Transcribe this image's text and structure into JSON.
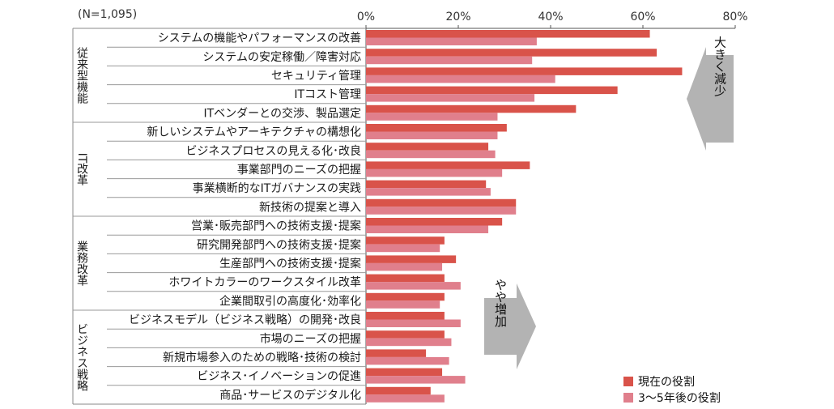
{
  "header": {
    "n_label": "(N=1,095)"
  },
  "chart_data": {
    "type": "bar",
    "orientation": "horizontal",
    "xlim": [
      0,
      80
    ],
    "x_ticks": [
      "0%",
      "20%",
      "40%",
      "60%",
      "80%"
    ],
    "grid": false,
    "legend_position": "bottom-right",
    "groups": [
      {
        "label": "従来型機能",
        "start": 0,
        "end": 4
      },
      {
        "label": "IT改革",
        "start": 5,
        "end": 9
      },
      {
        "label": "業務改革",
        "start": 10,
        "end": 14
      },
      {
        "label": "ビジネス戦略",
        "start": 15,
        "end": 19
      }
    ],
    "categories": [
      "システムの機能やパフォーマンスの改善",
      "システムの安定稼働／障害対応",
      "セキュリティ管理",
      "ITコスト管理",
      "ITベンダーとの交渉、製品選定",
      "新しいシステムやアーキテクチャの構想化",
      "ビジネスプロセスの見える化･改良",
      "事業部門のニーズの把握",
      "事業横断的なITガバナンスの実践",
      "新技術の提案と導入",
      "営業･販売部門への技術支援･提案",
      "研究開発部門への技術支援･提案",
      "生産部門への技術支援･提案",
      "ホワイトカラーのワークスタイル改革",
      "企業間取引の高度化･効率化",
      "ビジネスモデル（ビジネス戦略）の開発･改良",
      "市場のニーズの把握",
      "新規市場参入のための戦略･技術の検討",
      "ビジネス･イノベーションの促進",
      "商品･サービスのデジタル化"
    ],
    "series": [
      {
        "name": "現在の役割",
        "color": "#d9534a",
        "values": [
          61.5,
          63,
          68.5,
          54.5,
          45.5,
          30.5,
          26.5,
          35.5,
          26,
          32.5,
          29.5,
          17,
          19.5,
          17,
          17,
          17,
          17,
          13,
          16.5,
          14
        ]
      },
      {
        "name": "3～5年後の役割",
        "color": "#e07f8c",
        "values": [
          37,
          36,
          41,
          36.5,
          28.5,
          28.5,
          28,
          29.5,
          27,
          32.5,
          26.5,
          16,
          16.5,
          20.5,
          16,
          20.5,
          18.5,
          18,
          21.5,
          17
        ]
      }
    ],
    "annotations": [
      {
        "text": "大きく減少",
        "direction": "left"
      },
      {
        "text": "やや増加",
        "direction": "right"
      }
    ]
  }
}
